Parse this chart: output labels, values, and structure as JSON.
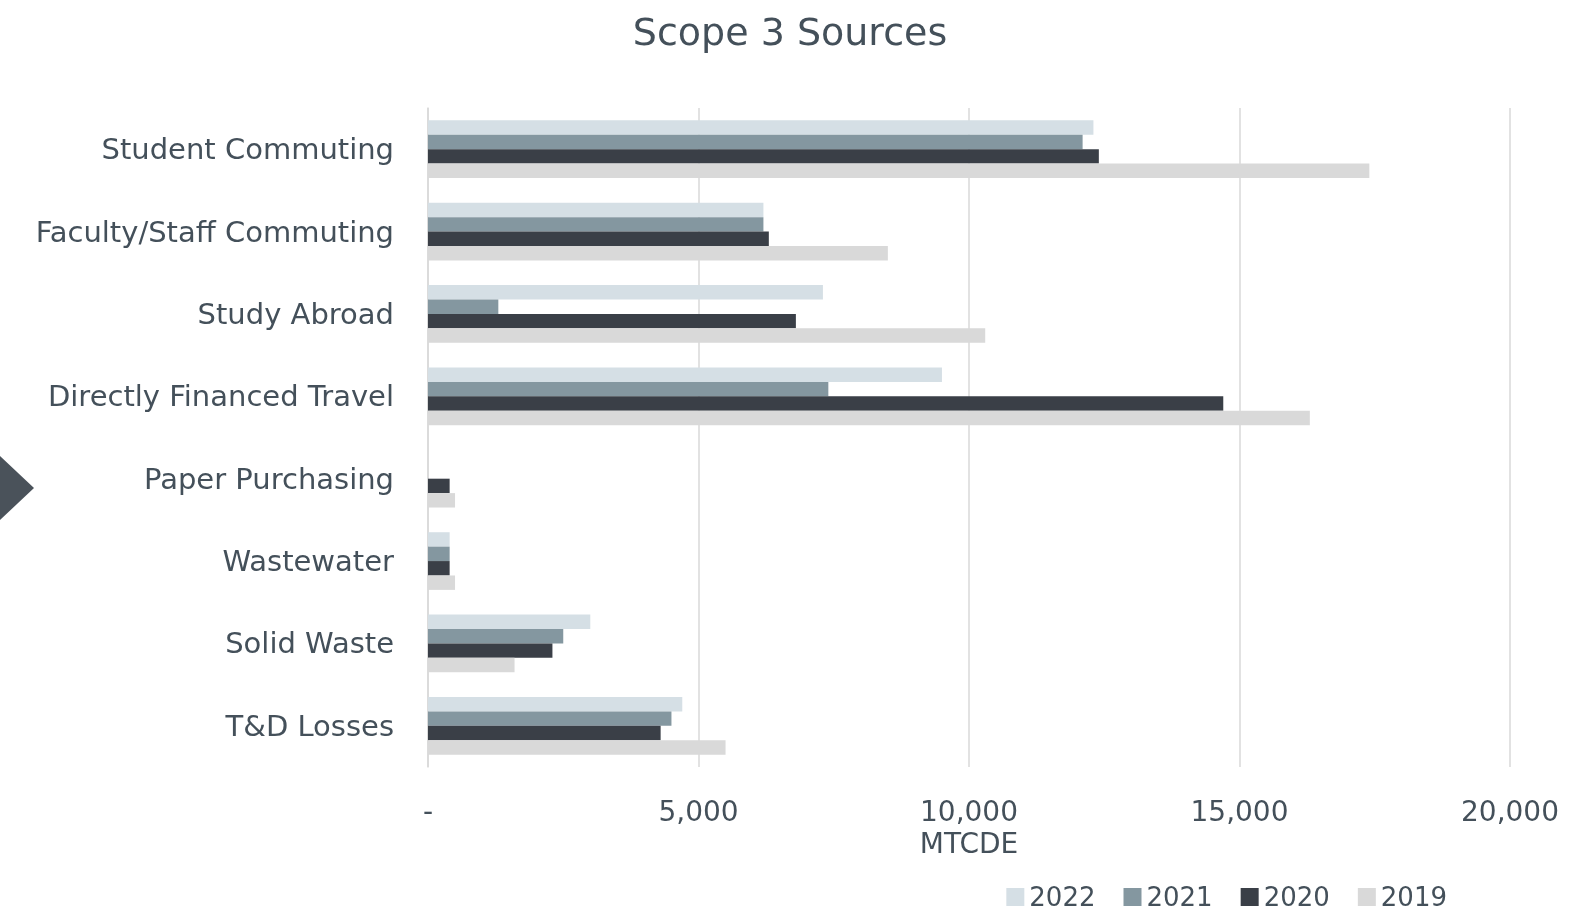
{
  "chart_data": {
    "type": "bar",
    "title": "Scope 3 Sources",
    "xlabel": "MTCDE",
    "orientation": "horizontal",
    "categories": [
      "Student Commuting",
      "Faculty/Staff Commuting",
      "Study Abroad",
      "Directly Financed Travel",
      "Paper Purchasing",
      "Wastewater",
      "Solid Waste",
      "T&D Losses"
    ],
    "series": [
      {
        "name": "2022",
        "color": "#d5dfe5",
        "values": [
          12300,
          6200,
          7300,
          9500,
          null,
          400,
          3000,
          4700
        ]
      },
      {
        "name": "2021",
        "color": "#8497a0",
        "values": [
          12100,
          6200,
          1300,
          7400,
          null,
          400,
          2500,
          4500
        ]
      },
      {
        "name": "2020",
        "color": "#3a3f47",
        "values": [
          12400,
          6300,
          6800,
          14700,
          400,
          400,
          2300,
          4300
        ]
      },
      {
        "name": "2019",
        "color": "#d9d9d9",
        "values": [
          17400,
          8500,
          10300,
          16300,
          500,
          500,
          1600,
          5500
        ]
      }
    ],
    "xlim": [
      0,
      20000
    ],
    "xticks": [
      {
        "value": 0,
        "label": "-"
      },
      {
        "value": 5000,
        "label": "5,000"
      },
      {
        "value": 10000,
        "label": "10,000"
      },
      {
        "value": 15000,
        "label": "15,000"
      },
      {
        "value": 20000,
        "label": "20,000"
      }
    ],
    "grid": "x",
    "legend": "bottom right"
  }
}
